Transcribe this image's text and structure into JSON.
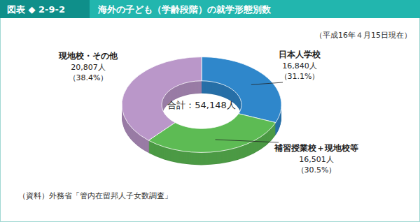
{
  "chart_data": {
    "type": "donut",
    "figure_number": "図表 ◆ 2-9-2",
    "title": "海外の子ども（学齢段階）の就学形態別数",
    "subtitle": "（平成16年４月15日現在）",
    "source": "（資料）外務省「管内在留邦人子女数調査」",
    "categories": [
      "日本人学校",
      "補習授業校＋現地校等",
      "現地校・その他"
    ],
    "values": [
      16840,
      16501,
      20807
    ],
    "value_labels": [
      "16,840人",
      "16,501人",
      "20,807人"
    ],
    "percents": [
      31.1,
      30.5,
      38.4
    ],
    "percent_labels": [
      "（31.1%）",
      "（30.5%）",
      "（38.4%）"
    ],
    "colors": [
      "#2f87cb",
      "#5dbb54",
      "#ba97c9"
    ],
    "total": 54148,
    "total_label": "合計：54,148人",
    "data_labels": true
  }
}
